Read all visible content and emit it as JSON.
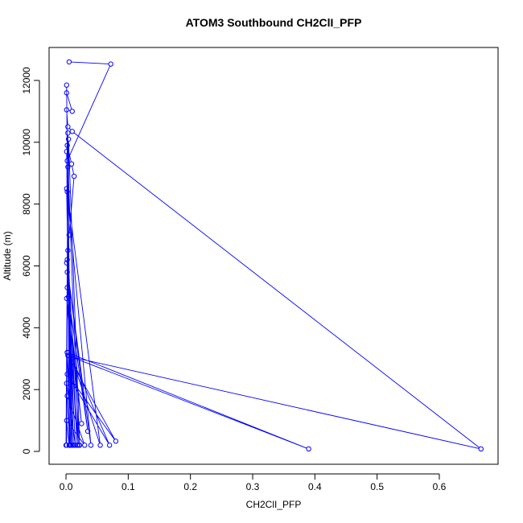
{
  "chart_data": {
    "type": "line",
    "title": "ATOM3 Southbound CH2ClI_PFP",
    "x_label": "CH2ClI_PFP",
    "y_label": "Altitude (m)",
    "color": "#0000ff",
    "markers": true,
    "x": [
      0.005,
      0.072,
      0.002,
      0.001,
      0.001,
      0.01,
      0.001,
      0.003,
      0.01,
      0.667,
      0.01,
      0.002,
      0.39,
      0.003,
      0.08,
      0.002,
      0.07,
      0.01,
      0.055,
      0.002,
      0.04,
      0.001,
      0.035,
      0.002,
      0.025,
      0.001,
      0.02,
      0.002,
      0.009,
      0.013,
      0.005,
      0.003,
      0.018,
      0.004,
      0.01,
      0.002,
      0.007,
      0.001,
      0.003,
      0.001,
      0.006,
      0.002,
      0.03,
      0.001,
      0.005,
      0.004,
      0.022,
      0.002,
      0.012,
      0.001,
      0.008,
      0.003,
      0.0,
      0.002,
      0.015,
      0.001
    ],
    "y": [
      12600,
      12530,
      9400,
      11850,
      11600,
      11000,
      11050,
      10500,
      10350,
      80,
      3050,
      3200,
      80,
      3100,
      330,
      2500,
      200,
      3000,
      200,
      8400,
      200,
      6100,
      650,
      5300,
      900,
      4950,
      200,
      9900,
      9300,
      8900,
      7000,
      6500,
      200,
      5000,
      200,
      3200,
      200,
      200,
      10300,
      9700,
      200,
      1800,
      200,
      1000,
      200,
      10100,
      200,
      6200,
      200,
      8500,
      200,
      9200,
      200,
      5800,
      200,
      2200
    ],
    "xlim": [
      -0.0272,
      0.6944
    ],
    "ylim": [
      -416,
      13066
    ],
    "xticks": [
      {
        "value": 0,
        "label": "0.0"
      },
      {
        "value": 0.1,
        "label": "0.1"
      },
      {
        "value": 0.2,
        "label": "0.2"
      },
      {
        "value": 0.3,
        "label": "0.3"
      },
      {
        "value": 0.4,
        "label": "0.4"
      },
      {
        "value": 0.5,
        "label": "0.5"
      },
      {
        "value": 0.6,
        "label": "0.6"
      }
    ],
    "yticks": [
      0,
      2000,
      4000,
      6000,
      8000,
      10000,
      12000
    ]
  }
}
